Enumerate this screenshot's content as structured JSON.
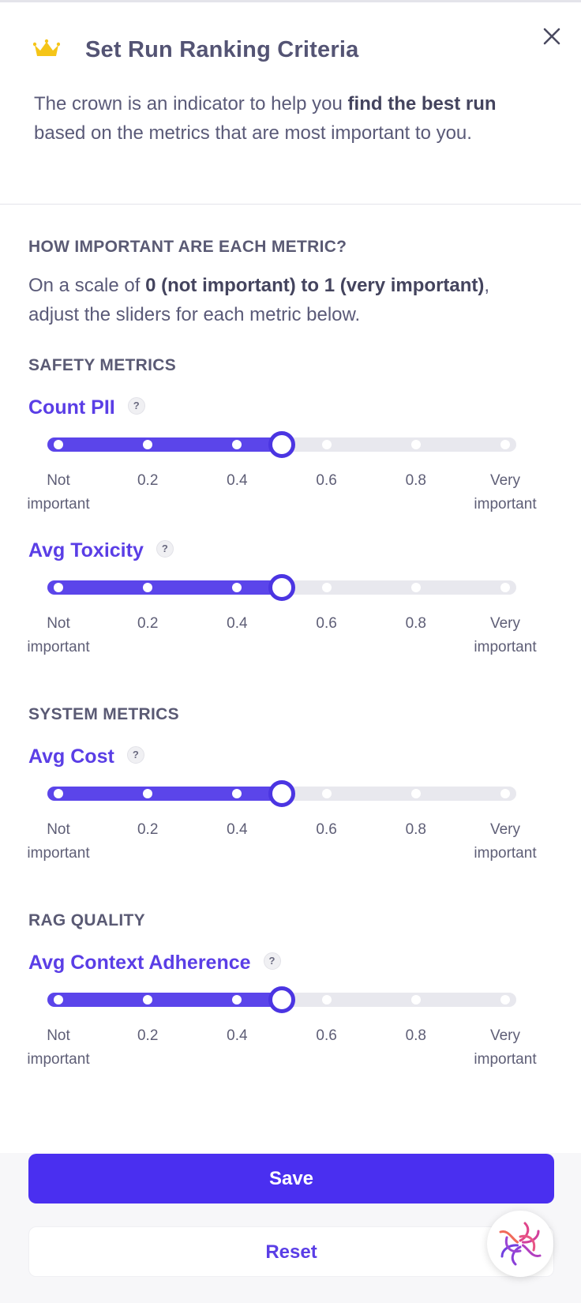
{
  "header": {
    "title": "Set Run Ranking Criteria",
    "intro_pre": "The crown is an indicator to help you ",
    "intro_bold": "find the best run",
    "intro_post": " based on the metrics that are most important to you."
  },
  "importance": {
    "heading": "HOW IMPORTANT ARE EACH METRIC?",
    "desc_pre": "On a scale of ",
    "desc_bold": "0 (not important) to 1 (very important)",
    "desc_post": ", adjust the sliders for each metric below."
  },
  "scale_labels": {
    "min_line1": "Not",
    "min_line2": "important",
    "t02": "0.2",
    "t04": "0.4",
    "t06": "0.6",
    "t08": "0.8",
    "max_line1": "Very",
    "max_line2": "important"
  },
  "help_glyph": "?",
  "sections": {
    "safety": "SAFETY METRICS",
    "system": "SYSTEM METRICS",
    "rag": "RAG QUALITY"
  },
  "metrics": {
    "count_pii": {
      "name": "Count PII",
      "value": 0.5
    },
    "avg_toxicity": {
      "name": "Avg Toxicity",
      "value": 0.5
    },
    "avg_cost": {
      "name": "Avg Cost",
      "value": 0.5
    },
    "avg_context_adherence": {
      "name": "Avg Context Adherence",
      "value": 0.5
    }
  },
  "buttons": {
    "save": "Save",
    "reset": "Reset"
  },
  "icons": {
    "header": "crown-icon",
    "close": "close-icon",
    "help": "help-icon",
    "assistant": "assistant-swirl-icon"
  },
  "colors": {
    "accent": "#5a3ee6",
    "primary_button": "#4a2ff0",
    "crown": "#f5c518",
    "track": "#e8e8ee"
  }
}
